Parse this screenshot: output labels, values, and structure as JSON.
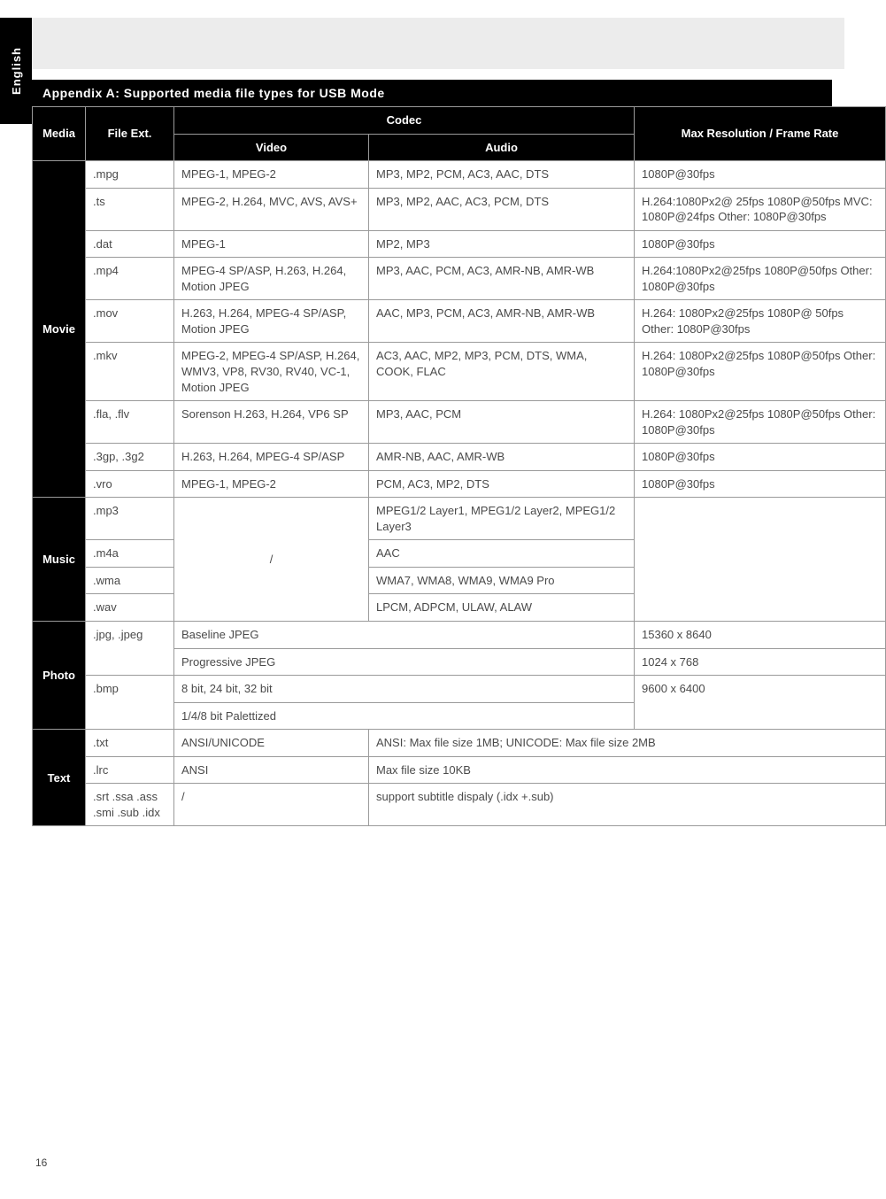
{
  "side_tab": "English",
  "section_title": "Appendix A: Supported media file types for USB Mode",
  "page_number": "16",
  "headers": {
    "media": "Media",
    "ext": "File Ext.",
    "codec": "Codec",
    "video": "Video",
    "audio": "Audio",
    "max": "Max Resolution / Frame Rate"
  },
  "movie": {
    "label": "Movie",
    "rows": [
      {
        "ext": ".mpg",
        "video": "MPEG-1, MPEG-2",
        "audio": "MP3, MP2, PCM, AC3, AAC, DTS",
        "max": "1080P@30fps"
      },
      {
        "ext": ".ts",
        "video": "MPEG-2, H.264, MVC, AVS, AVS+",
        "audio": "MP3, MP2, AAC, AC3, PCM, DTS",
        "max": "H.264:1080Px2@ 25fps 1080P@50fps MVC: 1080P@24fps Other: 1080P@30fps"
      },
      {
        "ext": ".dat",
        "video": "MPEG-1",
        "audio": "MP2, MP3",
        "max": "1080P@30fps"
      },
      {
        "ext": ".mp4",
        "video": "MPEG-4 SP/ASP, H.263, H.264, Motion JPEG",
        "audio": "MP3, AAC, PCM, AC3, AMR-NB, AMR-WB",
        "max": "H.264:1080Px2@25fps 1080P@50fps Other: 1080P@30fps"
      },
      {
        "ext": ".mov",
        "video": "H.263, H.264, MPEG-4 SP/ASP, Motion JPEG",
        "audio": "AAC, MP3, PCM, AC3, AMR-NB, AMR-WB",
        "max": "H.264: 1080Px2@25fps 1080P@ 50fps Other: 1080P@30fps"
      },
      {
        "ext": ".mkv",
        "video": "MPEG-2, MPEG-4 SP/ASP, H.264, WMV3, VP8, RV30, RV40, VC-1, Motion JPEG",
        "audio": "AC3, AAC, MP2, MP3, PCM, DTS, WMA, COOK, FLAC",
        "max": "H.264: 1080Px2@25fps 1080P@50fps Other: 1080P@30fps"
      },
      {
        "ext": ".fla, .flv",
        "video": "Sorenson H.263, H.264, VP6 SP",
        "audio": "MP3, AAC, PCM",
        "max": "H.264: 1080Px2@25fps 1080P@50fps Other: 1080P@30fps"
      },
      {
        "ext": ".3gp, .3g2",
        "video": "H.263, H.264, MPEG-4 SP/ASP",
        "audio": "AMR-NB, AAC, AMR-WB",
        "max": "1080P@30fps"
      },
      {
        "ext": ".vro",
        "video": "MPEG-1, MPEG-2",
        "audio": "PCM, AC3, MP2, DTS",
        "max": "1080P@30fps"
      }
    ]
  },
  "music": {
    "label": "Music",
    "rows": [
      {
        "ext": ".mp3",
        "video": "/",
        "audio": "MPEG1/2 Layer1, MPEG1/2 Layer2, MPEG1/2 Layer3",
        "max": ""
      },
      {
        "ext": ".m4a",
        "video": "",
        "audio": "AAC",
        "max": ""
      },
      {
        "ext": ".wma",
        "video": "",
        "audio": "WMA7, WMA8, WMA9, WMA9 Pro",
        "max": ""
      },
      {
        "ext": ".wav",
        "video": "",
        "audio": "LPCM, ADPCM, ULAW, ALAW",
        "max": ""
      }
    ]
  },
  "photo": {
    "label": "Photo",
    "rows": [
      {
        "ext": ".jpg, .jpeg",
        "codec1": "Baseline JPEG",
        "codec2": "Progressive JPEG",
        "max1": "15360 x 8640",
        "max2": "1024 x 768"
      },
      {
        "ext": ".bmp",
        "codec1": "8 bit, 24 bit, 32 bit",
        "codec2": "1/4/8 bit Palettized",
        "max1": "9600 x 6400"
      }
    ]
  },
  "text": {
    "label": "Text",
    "rows": [
      {
        "ext": ".txt",
        "codec": "ANSI/UNICODE",
        "note": "ANSI: Max file size 1MB; UNICODE: Max file size 2MB"
      },
      {
        "ext": ".lrc",
        "codec": "ANSI",
        "note": "Max file size 10KB"
      },
      {
        "ext": ".srt .ssa .ass .smi .sub .idx",
        "codec": "/",
        "note": "support subtitle dispaly (.idx +.sub)"
      }
    ]
  }
}
